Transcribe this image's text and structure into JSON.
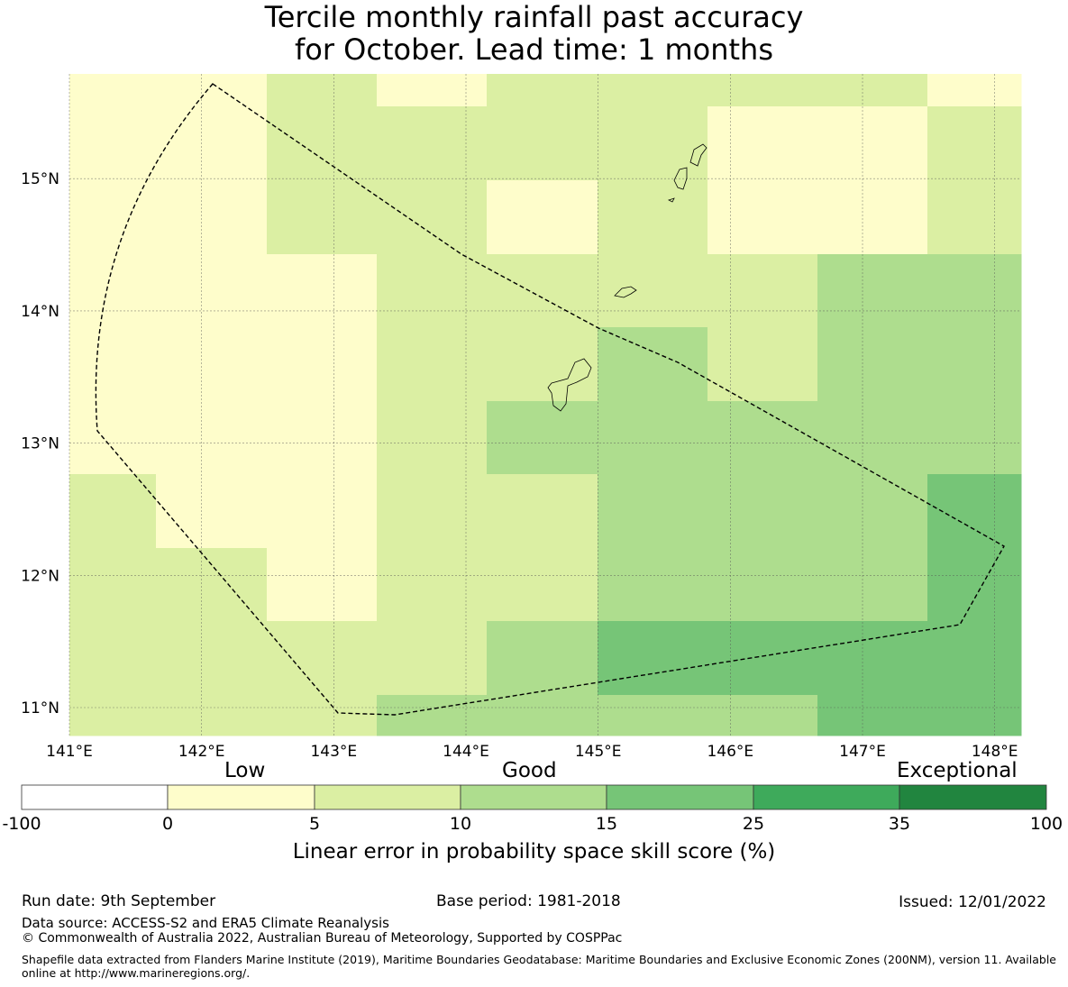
{
  "title": {
    "line1": "Tercile monthly rainfall past accuracy",
    "line2": "for October. Lead time: 1 months"
  },
  "map": {
    "lon_range": [
      141.0,
      148.2
    ],
    "lat_range": [
      10.8,
      15.8
    ],
    "lon_ticks": [
      "141°E",
      "142°E",
      "143°E",
      "144°E",
      "145°E",
      "146°E",
      "147°E",
      "148°E"
    ],
    "lat_ticks": [
      "11°N",
      "12°N",
      "13°N",
      "14°N",
      "15°N"
    ],
    "colors": {
      "0_5": "#fefdcb",
      "5_10": "#dbefa3",
      "10_15": "#aedd8e",
      "15_25": "#76c577",
      "25_35": "#3eaa5b",
      "35_100": "#21853f",
      "neg": "#ffffff"
    }
  },
  "legend": {
    "categories": [
      "Low",
      "Good",
      "Exceptional"
    ],
    "ticks": [
      "-100",
      "0",
      "5",
      "10",
      "15",
      "25",
      "35",
      "100"
    ],
    "axis_title": "Linear error in probability space skill score (%)"
  },
  "footer": {
    "run_date": "Run date: 9th September",
    "base_period": "Base period: 1981-2018",
    "issued": "Issued: 12/01/2022",
    "data_source": "Data source: ACCESS-S2 and ERA5 Climate Reanalysis",
    "copyright": "© Commonwealth of Australia 2022, Australian Bureau of Meteorology, Supported by COSPPac",
    "shapefile_note": "Shapefile data extracted from Flanders Marine Institute (2019), Maritime Boundaries Geodatabase: Maritime Boundaries and Exclusive Economic Zones (200NM), version 11. Available online at http://www.marineregions.org/."
  }
}
